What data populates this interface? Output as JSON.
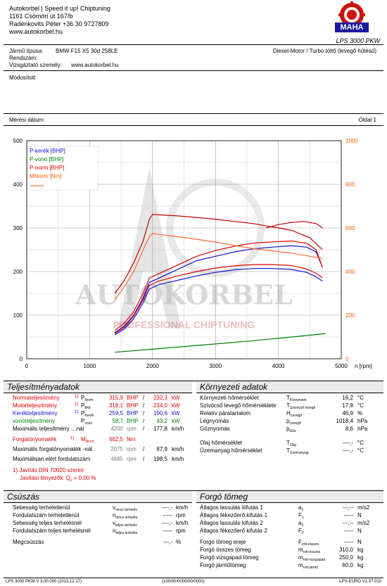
{
  "header": {
    "company_lines": [
      "Autokorbel | Speed it up! Chiptuning",
      "1161 Csömöri út 167/b",
      "Radenkovits Péter +36 30 9727809",
      "www.autokorbel.hu"
    ],
    "logo_text": "MAHA",
    "logo_ring_text": "Maschinenbau Haldenwang",
    "product": "LPS 3000 PKW"
  },
  "vehicle": {
    "type_label": "Jármű típusa:",
    "type_value": "BMW F15 X5 30d 258LE",
    "engine": "Diesel-Motor / Turbo töltő (levegő hűtésű)",
    "reg_label": "Rendszám:",
    "tester_label": "Vizsgáztató személy:",
    "tester_value": "www.autokorbel.hu",
    "modified": "Módosított",
    "date_label": "Mérési dátum:",
    "page": "Oldal 1"
  },
  "watermark": {
    "main": "AUTOKORBEL",
    "sub": "PROFESSIONAL CHIPTUNING"
  },
  "chart_data": {
    "type": "line",
    "x_unit": "n [rpm]",
    "xlim": [
      0,
      5000
    ],
    "x_ticks": [
      0,
      1000,
      2000,
      3000,
      4000,
      5000
    ],
    "y_left_ticks": [
      0,
      100,
      200,
      300,
      400,
      500
    ],
    "y_right_ticks": [
      0,
      200,
      400,
      600,
      800,
      1000
    ],
    "ylim_left": [
      0,
      500
    ],
    "ylim_right": [
      0,
      1000
    ],
    "grid": true,
    "legend_position": "top-left",
    "legend": [
      {
        "label": "P-kerék [BHP]",
        "color": "#1010d0"
      },
      {
        "label": "P-vonó [BHP]",
        "color": "#008000"
      },
      {
        "label": "P-norm [BHP]",
        "color": "#e00000"
      },
      {
        "label": "MNorm [Nm]",
        "color": "#ff5a00"
      }
    ],
    "series": [
      {
        "name": "P-kerék [BHP]",
        "axis": "left",
        "color": "#1010d0",
        "x": [
          1400,
          1550,
          1700,
          1850,
          1950,
          2100,
          2400,
          2700,
          3000,
          3300,
          3600,
          3900,
          4200,
          4450,
          4600,
          4700
        ],
        "y": [
          60,
          75,
          100,
          140,
          175,
          185,
          205,
          225,
          235,
          245,
          252,
          256,
          259,
          256,
          245,
          210
        ]
      },
      {
        "name": "P-kerék [BHP] (stock)",
        "axis": "left",
        "color": "#1010d0",
        "x": [
          1400,
          1550,
          1700,
          1850,
          1950,
          2100,
          2400,
          2700,
          3000,
          3300,
          3600,
          3900,
          4200,
          4450,
          4600,
          4700
        ],
        "y": [
          55,
          68,
          92,
          128,
          160,
          170,
          180,
          190,
          198,
          204,
          207,
          207,
          205,
          198,
          188,
          178
        ]
      },
      {
        "name": "P-vonó [BHP]",
        "axis": "left",
        "color": "#008000",
        "x": [
          1400,
          2000,
          2500,
          3000,
          3500,
          4000,
          4500,
          4750
        ],
        "y": [
          15,
          22,
          28,
          34,
          40,
          47,
          54,
          58
        ]
      },
      {
        "name": "P-norm [BHP]",
        "axis": "left",
        "color": "#e00000",
        "x": [
          1400,
          1550,
          1700,
          1850,
          1950,
          2100,
          2400,
          2700,
          3000,
          3300,
          3600,
          3900,
          4200,
          4450,
          4600,
          4700
        ],
        "y": [
          65,
          82,
          108,
          150,
          185,
          195,
          215,
          235,
          248,
          258,
          265,
          268,
          270,
          265,
          250,
          210
        ]
      },
      {
        "name": "P-norm [BHP] (stock)",
        "axis": "left",
        "color": "#e00000",
        "x": [
          1400,
          1550,
          1700,
          1850,
          1950,
          2100,
          2400,
          2700,
          3000,
          3300,
          3600,
          3900,
          4200,
          4450,
          4600,
          4700
        ],
        "y": [
          58,
          72,
          98,
          135,
          168,
          178,
          190,
          200,
          208,
          213,
          216,
          216,
          214,
          206,
          196,
          186
        ]
      },
      {
        "name": "MNorm [Nm]",
        "axis": "right",
        "color": "#c00000",
        "x": [
          1400,
          1550,
          1700,
          1850,
          1950,
          2000,
          2100,
          2400,
          2700,
          3000,
          3300,
          3600,
          3900,
          4200,
          4500,
          4700
        ],
        "y": [
          300,
          360,
          440,
          540,
          640,
          662,
          660,
          655,
          648,
          640,
          630,
          620,
          605,
          590,
          555,
          500
        ]
      },
      {
        "name": "MNorm [Nm] (stock)",
        "axis": "right",
        "color": "#ff6a30",
        "x": [
          1400,
          1550,
          1700,
          1850,
          1950,
          2000,
          2100,
          2400,
          2700,
          3000,
          3300,
          3600,
          3900,
          4200,
          4500,
          4700
        ],
        "y": [
          270,
          330,
          400,
          500,
          560,
          575,
          570,
          560,
          548,
          535,
          520,
          505,
          495,
          485,
          470,
          460
        ]
      },
      {
        "name": "P-norm [BHP] (tuned high)",
        "axis": "right",
        "color": "#c00000",
        "x": [
          3800,
          4000,
          4200,
          4400,
          4600,
          4700
        ],
        "y": [
          600,
          615,
          625,
          630,
          620,
          600
        ]
      }
    ]
  },
  "perf": {
    "title": "Teljesítményadatok",
    "rows": [
      {
        "label": "Normateljesítmény",
        "note": "1)",
        "sym": "P",
        "sub": "Norm",
        "v1": "315,9",
        "u1": "BHP",
        "v2": "232,3",
        "u2": "kW",
        "cls": "red"
      },
      {
        "label": "Motorteljesítmény",
        "note": "1)",
        "sym": "P",
        "sub": "Mot",
        "v1": "318,1",
        "u1": "BHP",
        "v2": "234,0",
        "u2": "kW",
        "cls": "red"
      },
      {
        "label": "Kerékteljesítmény",
        "note": "1)",
        "sym": "P",
        "sub": "Kerék",
        "v1": "259,5",
        "u1": "BHP",
        "v2": "190,6",
        "u2": "kW",
        "cls": "blue"
      },
      {
        "label": "vonóteljesítmény",
        "note": "",
        "sym": "P",
        "sub": "vonó",
        "v1": "58,7",
        "u1": "BHP",
        "v2": "43,2",
        "u2": "kW",
        "cls": "green"
      },
      {
        "label": "Maximális teljesítmény …nál",
        "note": "",
        "sym": "",
        "sub": "",
        "v1": "4200",
        "u1": "rpm",
        "v2": "177,8",
        "u2": "km/h",
        "cls": "mix"
      }
    ],
    "torque_rows": [
      {
        "label": "Forgatónyomaték",
        "note": "1)",
        "sym": "M",
        "sub": "Norm",
        "v1": "662,5",
        "u1": "Nm",
        "cls": "red"
      },
      {
        "label": "Maximális forgatónyomaték -nál",
        "v1": "2075",
        "u1": "rpm",
        "v2": "87,9",
        "u2": "km/h"
      },
      {
        "label": "Maximálisan elért fordulatszám",
        "v1": "4685",
        "u1": "rpm",
        "v2": "198,5",
        "u2": "km/h"
      }
    ],
    "footnote1": "1) Javítás DIN 70020 szerint",
    "footnote2": "Javítási tényezők: Q",
    "footnote2_sub": "v",
    "footnote2_val": "=     0,00 %"
  },
  "env": {
    "title": "Környezeti adatok",
    "rows": [
      {
        "label": "Környezeti hőmérséklet",
        "sym": "T",
        "sub": "Környezeti",
        "val": "16,2",
        "unit": "°C"
      },
      {
        "label": "Szívócső levegő hőmérséklete",
        "sym": "T",
        "sub": "Szívócső levegő",
        "val": "17,8",
        "unit": "°C"
      },
      {
        "label": "Relatív páratartalom",
        "sym": "H",
        "sub": "Levegő",
        "val": "46,9",
        "unit": "%"
      },
      {
        "label": "Légnyomás",
        "sym": "p",
        "sub": "Levegő",
        "val": "1018,4",
        "unit": "hPa"
      },
      {
        "label": "Göznyomás",
        "sym": "p",
        "sub": "Göz",
        "val": "8,6",
        "unit": "hPa"
      },
      {
        "label": "Olaj hőmérséklet",
        "sym": "T",
        "sub": "Olaj",
        "val": "----,-",
        "unit": "°C"
      },
      {
        "label": "Üzemanyag hőmérséklet",
        "sym": "T",
        "sub": "Üzemanyag",
        "val": "----,-",
        "unit": "°C"
      }
    ]
  },
  "slip": {
    "title": "Csúszás",
    "rows": [
      {
        "label": "Sebesség terheletlenül",
        "sym": "v",
        "sub": "nincs terhelés",
        "val": "----,-",
        "unit": "km/h"
      },
      {
        "label": "Fordulatszám terheletlenül",
        "sym": "n",
        "sub": "nincs terhelés",
        "val": "-----",
        "unit": "rpm"
      },
      {
        "label": "Sebesség teljes terhelésnél",
        "sym": "v",
        "sub": "teljes terhelés",
        "val": "----,-",
        "unit": "km/h"
      },
      {
        "label": "Fordulatszám teljes terhelésnél",
        "sym": "n",
        "sub": "teljes terhelés",
        "val": "-----",
        "unit": "rpm"
      },
      {
        "label": "Megcsúszás",
        "sym": "",
        "sub": "",
        "val": "---,-",
        "unit": "%"
      }
    ]
  },
  "mass": {
    "title": "Forgó tömeg",
    "rows": [
      {
        "label": "Átlagos lassulás kifutás 1",
        "sym": "a",
        "sub": "1",
        "val": "---,--",
        "unit": "m/s2"
      },
      {
        "label": "Átlagos fékezőerő kifutás 1",
        "sym": "F",
        "sub": "1",
        "val": "-----",
        "unit": "N"
      },
      {
        "label": "Átlagos lassulás kifutás 2",
        "sym": "a",
        "sub": "2",
        "val": "---,--",
        "unit": "m/s2"
      },
      {
        "label": "Átlagos fékezőerő kifutás 2",
        "sym": "F",
        "sub": "2",
        "val": "-----",
        "unit": "N"
      },
      {
        "label": "Forgó tömeg ereje",
        "sym": "F",
        "sub": "rott-összes",
        "val": "-----",
        "unit": "N"
      },
      {
        "label": "Forgó összes tömeg",
        "sym": "m",
        "sub": "rott-összes",
        "val": "310,0",
        "unit": "kg"
      },
      {
        "label": "Forgó vizsgapad tömeg",
        "sym": "m",
        "sub": "rott-vizsgapad",
        "val": "250,0",
        "unit": "kg"
      },
      {
        "label": "Forgó járműtömeg",
        "sym": "m",
        "sub": "rott-jármű",
        "val": "60,0",
        "unit": "kg"
      }
    ]
  },
  "footer": {
    "left": "LPS 3000 PKW V 3.00.000 (2013.12.17)",
    "center": "(100/00/0000/00/0000)",
    "right": "LPS-EURO V1.37.010"
  }
}
